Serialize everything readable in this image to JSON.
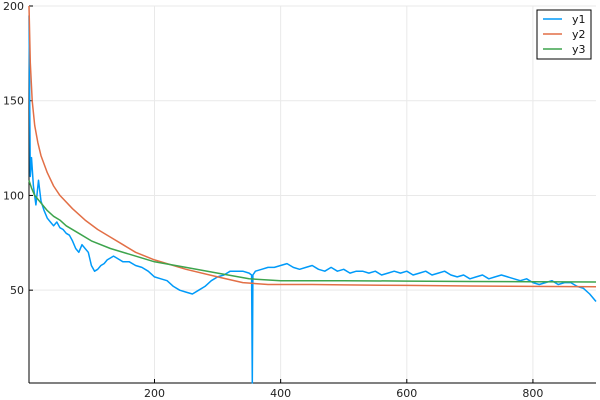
{
  "chart_data": {
    "type": "line",
    "title": "",
    "xlabel": "",
    "ylabel": "",
    "xlim": [
      1,
      900
    ],
    "ylim": [
      1,
      200
    ],
    "x_ticks": [
      200,
      400,
      600,
      800
    ],
    "y_ticks": [
      50,
      100,
      150,
      200
    ],
    "grid": true,
    "legend_position": "top-right",
    "series": [
      {
        "name": "y1",
        "color": "#009af9",
        "points": [
          [
            1,
            195
          ],
          [
            3,
            110
          ],
          [
            5,
            120
          ],
          [
            8,
            105
          ],
          [
            12,
            95
          ],
          [
            16,
            108
          ],
          [
            20,
            97
          ],
          [
            25,
            92
          ],
          [
            30,
            88
          ],
          [
            35,
            86
          ],
          [
            40,
            84
          ],
          [
            45,
            86
          ],
          [
            50,
            83
          ],
          [
            55,
            82
          ],
          [
            60,
            80
          ],
          [
            65,
            79
          ],
          [
            70,
            76
          ],
          [
            75,
            72
          ],
          [
            80,
            70
          ],
          [
            85,
            74
          ],
          [
            90,
            72
          ],
          [
            95,
            70
          ],
          [
            100,
            63
          ],
          [
            105,
            60
          ],
          [
            110,
            61
          ],
          [
            115,
            63
          ],
          [
            120,
            64
          ],
          [
            125,
            66
          ],
          [
            130,
            67
          ],
          [
            135,
            68
          ],
          [
            140,
            67
          ],
          [
            145,
            66
          ],
          [
            150,
            65
          ],
          [
            160,
            65
          ],
          [
            170,
            63
          ],
          [
            180,
            62
          ],
          [
            190,
            60
          ],
          [
            200,
            57
          ],
          [
            210,
            56
          ],
          [
            220,
            55
          ],
          [
            230,
            52
          ],
          [
            240,
            50
          ],
          [
            250,
            49
          ],
          [
            260,
            48
          ],
          [
            270,
            50
          ],
          [
            280,
            52
          ],
          [
            290,
            55
          ],
          [
            300,
            57
          ],
          [
            310,
            58
          ],
          [
            320,
            60
          ],
          [
            330,
            60
          ],
          [
            340,
            60
          ],
          [
            350,
            59
          ],
          [
            354,
            58
          ],
          [
            355,
            1
          ],
          [
            356,
            58
          ],
          [
            360,
            60
          ],
          [
            370,
            61
          ],
          [
            380,
            62
          ],
          [
            390,
            62
          ],
          [
            400,
            63
          ],
          [
            410,
            64
          ],
          [
            420,
            62
          ],
          [
            430,
            61
          ],
          [
            440,
            62
          ],
          [
            450,
            63
          ],
          [
            460,
            61
          ],
          [
            470,
            60
          ],
          [
            480,
            62
          ],
          [
            490,
            60
          ],
          [
            500,
            61
          ],
          [
            510,
            59
          ],
          [
            520,
            60
          ],
          [
            530,
            60
          ],
          [
            540,
            59
          ],
          [
            550,
            60
          ],
          [
            560,
            58
          ],
          [
            570,
            59
          ],
          [
            580,
            60
          ],
          [
            590,
            59
          ],
          [
            600,
            60
          ],
          [
            610,
            58
          ],
          [
            620,
            59
          ],
          [
            630,
            60
          ],
          [
            640,
            58
          ],
          [
            650,
            59
          ],
          [
            660,
            60
          ],
          [
            670,
            58
          ],
          [
            680,
            57
          ],
          [
            690,
            58
          ],
          [
            700,
            56
          ],
          [
            710,
            57
          ],
          [
            720,
            58
          ],
          [
            730,
            56
          ],
          [
            740,
            57
          ],
          [
            750,
            58
          ],
          [
            760,
            57
          ],
          [
            770,
            56
          ],
          [
            780,
            55
          ],
          [
            790,
            56
          ],
          [
            800,
            54
          ],
          [
            810,
            53
          ],
          [
            820,
            54
          ],
          [
            830,
            55
          ],
          [
            840,
            53
          ],
          [
            850,
            54
          ],
          [
            860,
            54
          ],
          [
            870,
            52
          ],
          [
            880,
            51
          ],
          [
            890,
            48
          ],
          [
            900,
            44
          ]
        ]
      },
      {
        "name": "y2",
        "color": "#e26f46",
        "points": [
          [
            1,
            200
          ],
          [
            3,
            170
          ],
          [
            6,
            150
          ],
          [
            10,
            137
          ],
          [
            15,
            128
          ],
          [
            20,
            121
          ],
          [
            30,
            112
          ],
          [
            40,
            105
          ],
          [
            50,
            100
          ],
          [
            70,
            93
          ],
          [
            90,
            87
          ],
          [
            110,
            82
          ],
          [
            130,
            78
          ],
          [
            150,
            74
          ],
          [
            170,
            70
          ],
          [
            200,
            66
          ],
          [
            250,
            61
          ],
          [
            300,
            57
          ],
          [
            340,
            54
          ],
          [
            380,
            53
          ],
          [
            450,
            53
          ],
          [
            500,
            52.8
          ],
          [
            600,
            52.5
          ],
          [
            700,
            52.2
          ],
          [
            800,
            52
          ],
          [
            900,
            51.8
          ]
        ]
      },
      {
        "name": "y3",
        "color": "#3da44d",
        "points": [
          [
            1,
            108
          ],
          [
            5,
            104
          ],
          [
            10,
            100
          ],
          [
            20,
            96
          ],
          [
            30,
            92
          ],
          [
            40,
            89
          ],
          [
            50,
            87
          ],
          [
            60,
            84
          ],
          [
            80,
            80
          ],
          [
            100,
            76
          ],
          [
            130,
            72
          ],
          [
            160,
            69
          ],
          [
            200,
            65
          ],
          [
            250,
            62
          ],
          [
            300,
            59
          ],
          [
            350,
            56
          ],
          [
            400,
            55
          ],
          [
            500,
            55
          ],
          [
            600,
            54.8
          ],
          [
            700,
            54.6
          ],
          [
            800,
            54.4
          ],
          [
            900,
            54.3
          ]
        ]
      }
    ]
  }
}
